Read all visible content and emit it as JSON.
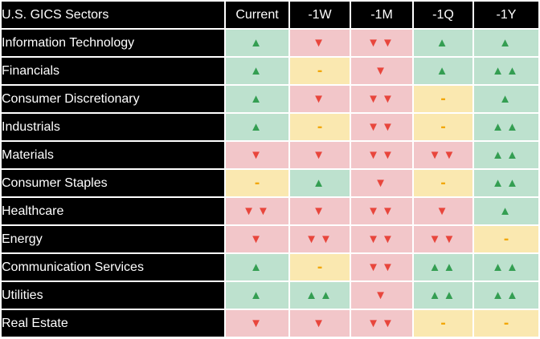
{
  "chart_data": {
    "type": "table",
    "title": "U.S. GICS Sectors",
    "header": {
      "sector_column": "U.S. GICS Sectors",
      "period_columns": [
        "Current",
        "-1W",
        "-1M",
        "-1Q",
        "-1Y"
      ]
    },
    "rows": [
      {
        "sector": "Information Technology",
        "signals": [
          "up",
          "down",
          "down2",
          "up",
          "up"
        ]
      },
      {
        "sector": "Financials",
        "signals": [
          "up",
          "flat",
          "down",
          "up",
          "up2"
        ]
      },
      {
        "sector": "Consumer Discretionary",
        "signals": [
          "up",
          "down",
          "down2",
          "flat",
          "up"
        ]
      },
      {
        "sector": "Industrials",
        "signals": [
          "up",
          "flat",
          "down2",
          "flat",
          "up2"
        ]
      },
      {
        "sector": "Materials",
        "signals": [
          "down",
          "down",
          "down2",
          "down2",
          "up2"
        ]
      },
      {
        "sector": "Consumer Staples",
        "signals": [
          "flat",
          "up",
          "down",
          "flat",
          "up2"
        ]
      },
      {
        "sector": "Healthcare",
        "signals": [
          "down2",
          "down",
          "down2",
          "down",
          "up"
        ]
      },
      {
        "sector": "Energy",
        "signals": [
          "down",
          "down2",
          "down2",
          "down2",
          "flat"
        ]
      },
      {
        "sector": "Communication Services",
        "signals": [
          "up",
          "flat",
          "down2",
          "up2",
          "up2"
        ]
      },
      {
        "sector": "Utilities",
        "signals": [
          "up",
          "up2",
          "down",
          "up2",
          "up2"
        ]
      },
      {
        "sector": "Real Estate",
        "signals": [
          "down",
          "down",
          "down2",
          "flat",
          "flat"
        ]
      }
    ],
    "signal_legend": {
      "up": {
        "glyph": "▲",
        "bg": "#bde1ce",
        "color": "#349e52"
      },
      "up2": {
        "glyph": "▲▲",
        "bg": "#bde1ce",
        "color": "#349e52"
      },
      "flat": {
        "glyph": "-",
        "bg": "#fae8b0",
        "color": "#f2a600"
      },
      "down": {
        "glyph": "▼",
        "bg": "#f2c6c9",
        "color": "#e8463c"
      },
      "down2": {
        "glyph": "▼▼",
        "bg": "#f2c6c9",
        "color": "#e8463c"
      }
    },
    "layout": {
      "header_bg": "#000000",
      "header_text": "#ffffff",
      "grid_gap_color": "#ffffff",
      "legend_position": "none",
      "grid": "white 2px gaps between cells"
    }
  }
}
